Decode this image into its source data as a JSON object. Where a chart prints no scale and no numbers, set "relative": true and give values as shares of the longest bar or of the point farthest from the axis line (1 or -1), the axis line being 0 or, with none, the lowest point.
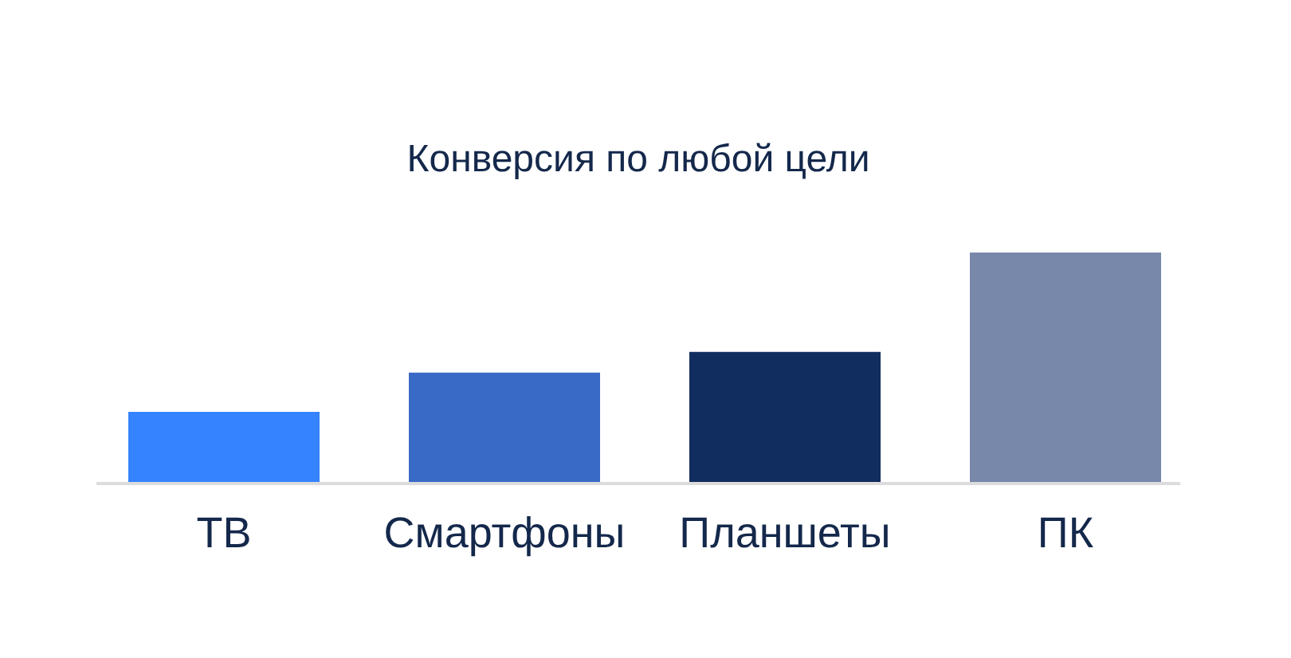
{
  "chart_data": {
    "type": "bar",
    "title": "Конверсия по любой цели",
    "categories": [
      "ТВ",
      "Смартфоны",
      "Планшеты",
      "ПК"
    ],
    "values": [
      0.31,
      0.48,
      0.57,
      1
    ],
    "colors": [
      "#3583fe",
      "#386ac6",
      "#112c5f",
      "#7888aa"
    ],
    "relative": true
  }
}
